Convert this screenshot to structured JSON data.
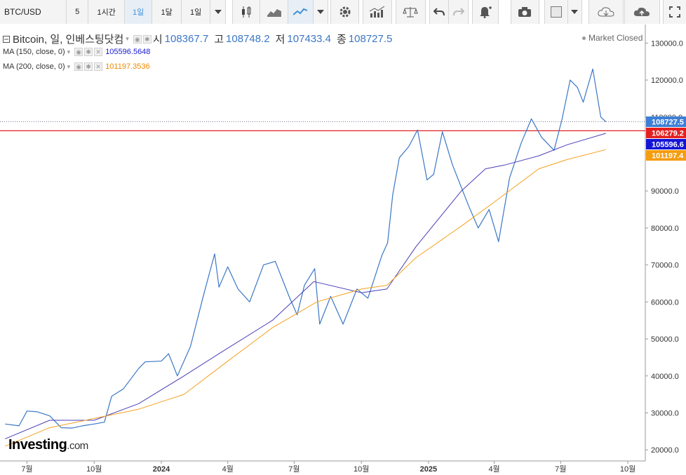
{
  "toolbar": {
    "symbol": "BTC/USD",
    "intervals": [
      "5",
      "1시간",
      "1일",
      "1달",
      "1일"
    ],
    "active_interval": "1일"
  },
  "legend": {
    "instrument": "Bitcoin, 일, 인베스팅닷컴",
    "open_label": "시",
    "open": "108367.7",
    "high_label": "고",
    "high": "108748.2",
    "low_label": "저",
    "low": "107433.4",
    "close_label": "종",
    "close": "108727.5",
    "ma150_label": "MA (150, close, 0)",
    "ma150_value": "105596.5648",
    "ma200_label": "MA (200, close, 0)",
    "ma200_value": "101197.3536"
  },
  "status": "Market Closed",
  "logo": {
    "brand": "Investing",
    "domain": ".com"
  },
  "colors": {
    "price": "#3b77c6",
    "ma150": "#4a3fb8",
    "ma200": "#f5a01e",
    "hline": "#e02020",
    "badge_price": "#3d7fd6",
    "badge_hline": "#e31f1f",
    "badge_ma150": "#1414d6",
    "badge_ma200": "#f59c10"
  },
  "chart_data": {
    "type": "line",
    "x_tick_labels": [
      "7월",
      "10월",
      "2024",
      "4월",
      "7월",
      "10월",
      "2025",
      "4월",
      "7월",
      "10월"
    ],
    "y_ticks": [
      20000,
      30000,
      40000,
      50000,
      60000,
      70000,
      80000,
      90000,
      100000,
      110000,
      120000,
      130000
    ],
    "y_tick_labels": [
      "20000.0",
      "30000.0",
      "40000.0",
      "50000.0",
      "60000.0",
      "70000.0",
      "80000.0",
      "90000.0",
      "100000.0",
      "110000.0",
      "120000.0",
      "130000.0"
    ],
    "ylim": [
      17000,
      135000
    ],
    "horizontal_line": 106279.2,
    "badges": [
      {
        "label": "108727.5",
        "value": 108727.5,
        "color": "#3d7fd6"
      },
      {
        "label": "106279.2",
        "value": 106279.2,
        "color": "#e31f1f"
      },
      {
        "label": "105596.6",
        "value": 105596.6,
        "color": "#1414d6"
      },
      {
        "label": "101197.4",
        "value": 101197.4,
        "color": "#f59c10"
      }
    ],
    "series": [
      {
        "key": "price",
        "x": [
          "2023-06-01",
          "2023-06-20",
          "2023-07-01",
          "2023-07-15",
          "2023-08-01",
          "2023-08-17",
          "2023-09-01",
          "2023-09-15",
          "2023-10-01",
          "2023-10-15",
          "2023-10-25",
          "2023-11-10",
          "2023-12-01",
          "2023-12-10",
          "2024-01-01",
          "2024-01-11",
          "2024-01-23",
          "2024-02-10",
          "2024-02-28",
          "2024-03-14",
          "2024-03-20",
          "2024-04-01",
          "2024-04-15",
          "2024-05-01",
          "2024-05-20",
          "2024-06-05",
          "2024-06-24",
          "2024-07-05",
          "2024-07-15",
          "2024-07-29",
          "2024-08-05",
          "2024-08-20",
          "2024-09-06",
          "2024-09-25",
          "2024-10-10",
          "2024-10-29",
          "2024-11-06",
          "2024-11-13",
          "2024-11-22",
          "2024-12-05",
          "2024-12-17",
          "2024-12-30",
          "2025-01-08",
          "2025-01-20",
          "2025-02-03",
          "2025-02-25",
          "2025-03-10",
          "2025-03-25",
          "2025-04-07",
          "2025-04-22",
          "2025-05-08",
          "2025-05-22",
          "2025-06-05",
          "2025-06-22",
          "2025-07-03",
          "2025-07-14",
          "2025-07-24",
          "2025-08-01",
          "2025-08-14",
          "2025-08-25",
          "2025-09-01"
        ],
        "y": [
          27000,
          26500,
          30500,
          30300,
          29200,
          26000,
          25900,
          26500,
          27000,
          27500,
          34500,
          36500,
          42000,
          43800,
          44000,
          46000,
          40000,
          48000,
          62000,
          73000,
          64000,
          69500,
          63500,
          60000,
          70000,
          71000,
          61500,
          56500,
          64500,
          69000,
          54000,
          61500,
          54000,
          63500,
          61000,
          72500,
          76000,
          89000,
          99000,
          102000,
          106500,
          93000,
          94500,
          106000,
          97000,
          86000,
          80000,
          85000,
          76300,
          93500,
          103000,
          109500,
          104500,
          101000,
          109500,
          120000,
          118000,
          114000,
          123000,
          110000,
          108727.5
        ]
      },
      {
        "key": "ma150",
        "x": [
          "2023-06-01",
          "2023-08-01",
          "2023-10-01",
          "2023-12-01",
          "2024-02-01",
          "2024-03-20",
          "2024-06-01",
          "2024-07-28",
          "2024-10-01",
          "2024-11-05",
          "2024-12-15",
          "2025-02-15",
          "2025-03-20",
          "2025-04-15",
          "2025-06-01",
          "2025-07-10",
          "2025-09-01"
        ],
        "y": [
          23000,
          28000,
          28000,
          32500,
          40000,
          46000,
          55000,
          65500,
          62500,
          63500,
          75000,
          90000,
          96000,
          97000,
          99500,
          102500,
          105596.6
        ]
      },
      {
        "key": "ma200",
        "x": [
          "2023-06-01",
          "2023-08-01",
          "2023-10-01",
          "2023-12-01",
          "2024-02-01",
          "2024-04-01",
          "2024-06-01",
          "2024-08-01",
          "2024-10-01",
          "2024-11-05",
          "2024-12-15",
          "2025-02-15",
          "2025-04-01",
          "2025-06-01",
          "2025-07-10",
          "2025-09-01"
        ],
        "y": [
          21000,
          26000,
          28500,
          31000,
          35000,
          44000,
          53000,
          60000,
          63500,
          64500,
          72000,
          80500,
          87000,
          96000,
          98500,
          101197.4
        ]
      }
    ]
  }
}
